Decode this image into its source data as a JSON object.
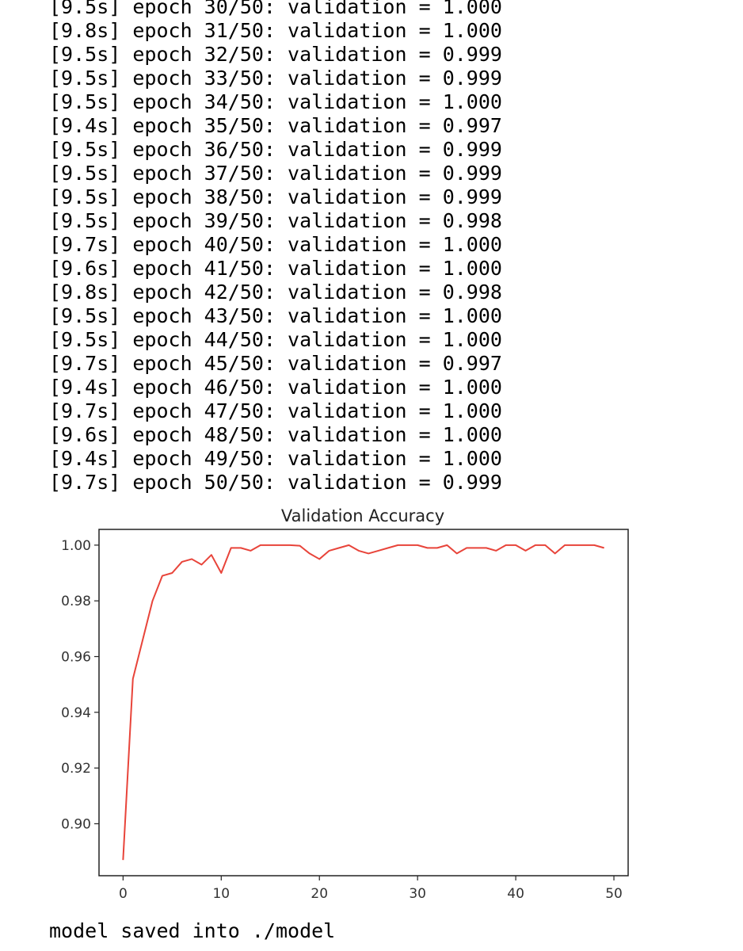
{
  "output": {
    "log_lines": [
      "[9.5s] epoch 30/50: validation = 1.000",
      "[9.8s] epoch 31/50: validation = 1.000",
      "[9.5s] epoch 32/50: validation = 0.999",
      "[9.5s] epoch 33/50: validation = 0.999",
      "[9.5s] epoch 34/50: validation = 1.000",
      "[9.4s] epoch 35/50: validation = 0.997",
      "[9.5s] epoch 36/50: validation = 0.999",
      "[9.5s] epoch 37/50: validation = 0.999",
      "[9.5s] epoch 38/50: validation = 0.999",
      "[9.5s] epoch 39/50: validation = 0.998",
      "[9.7s] epoch 40/50: validation = 1.000",
      "[9.6s] epoch 41/50: validation = 1.000",
      "[9.8s] epoch 42/50: validation = 0.998",
      "[9.5s] epoch 43/50: validation = 1.000",
      "[9.5s] epoch 44/50: validation = 1.000",
      "[9.7s] epoch 45/50: validation = 0.997",
      "[9.4s] epoch 46/50: validation = 1.000",
      "[9.7s] epoch 47/50: validation = 1.000",
      "[9.6s] epoch 48/50: validation = 1.000",
      "[9.4s] epoch 49/50: validation = 1.000",
      "[9.7s] epoch 50/50: validation = 0.999"
    ],
    "footer": "model saved into ./model"
  },
  "chart_data": {
    "type": "line",
    "title": "Validation Accuracy",
    "xlabel": "",
    "ylabel": "",
    "x": [
      0,
      1,
      2,
      3,
      4,
      5,
      6,
      7,
      8,
      9,
      10,
      11,
      12,
      13,
      14,
      15,
      16,
      17,
      18,
      19,
      20,
      21,
      22,
      23,
      24,
      25,
      26,
      27,
      28,
      29,
      30,
      31,
      32,
      33,
      34,
      35,
      36,
      37,
      38,
      39,
      40,
      41,
      42,
      43,
      44,
      45,
      46,
      47,
      48,
      49
    ],
    "series": [
      {
        "color": "#e8443a",
        "values": [
          0.887,
          0.952,
          0.966,
          0.98,
          0.989,
          0.99,
          0.994,
          0.995,
          0.993,
          0.9965,
          0.99,
          0.999,
          0.999,
          0.998,
          1.0,
          1.0,
          1.0,
          1.0,
          0.9998,
          0.997,
          0.995,
          0.998,
          0.999,
          1.0,
          0.998,
          0.997,
          0.998,
          0.999,
          1.0,
          1.0,
          1.0,
          0.999,
          0.999,
          1.0,
          0.997,
          0.999,
          0.999,
          0.999,
          0.998,
          1.0,
          1.0,
          0.998,
          1.0,
          1.0,
          0.997,
          1.0,
          1.0,
          1.0,
          1.0,
          0.999
        ]
      }
    ],
    "xticks": [
      0,
      10,
      20,
      30,
      40,
      50
    ],
    "xtick_labels": [
      "0",
      "10",
      "20",
      "30",
      "40",
      "50"
    ],
    "yticks": [
      0.9,
      0.92,
      0.94,
      0.96,
      0.98,
      1.0
    ],
    "ytick_labels": [
      "0.90",
      "0.92",
      "0.94",
      "0.96",
      "0.98",
      "1.00"
    ],
    "xlim": [
      -2.45,
      51.45
    ],
    "ylim": [
      0.88135,
      1.00565
    ],
    "grid": false,
    "legend": "none"
  }
}
